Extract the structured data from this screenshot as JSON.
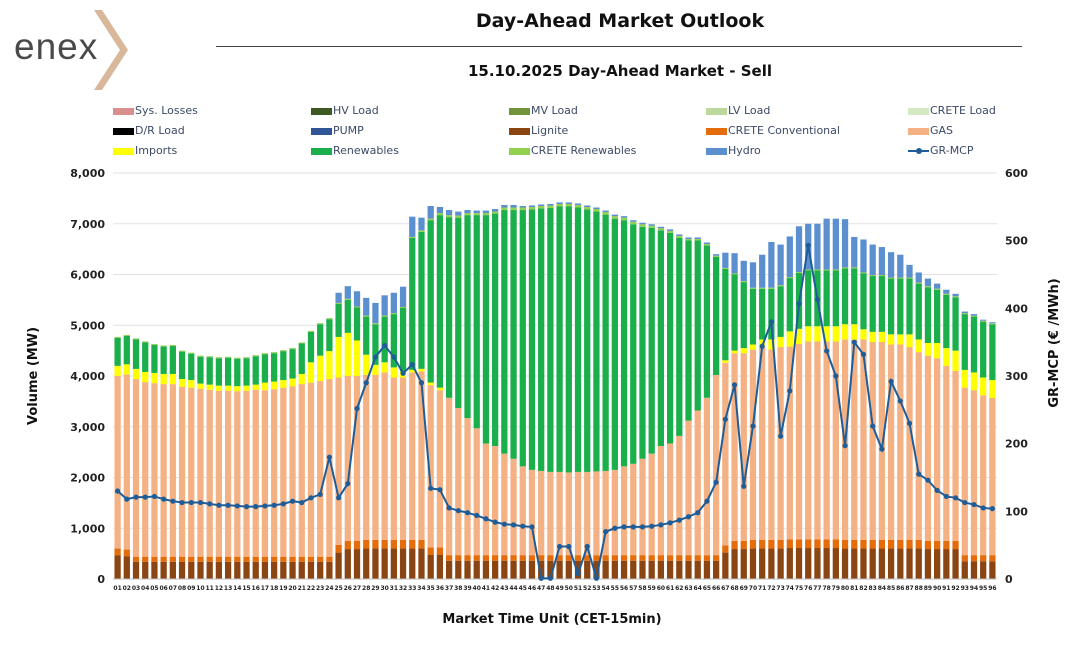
{
  "header": {
    "logo_text": "enex",
    "title": "Day-Ahead Market Outlook",
    "subtitle": "15.10.2025  Day-Ahead Market - Sell"
  },
  "chart_data": {
    "type": "bar",
    "stacked": true,
    "title": "15.10.2025  Day-Ahead Market - Sell",
    "xlabel": "Market Time Unit (CET-15min)",
    "ylabel": "Volume (MW)",
    "y2label": "GR-MCP (€ /MWh)",
    "ylim": [
      0,
      8000
    ],
    "y2lim": [
      0,
      600
    ],
    "yticks": [
      "0",
      "1,000",
      "2,000",
      "3,000",
      "4,000",
      "5,000",
      "6,000",
      "7,000",
      "8,000"
    ],
    "y2ticks": [
      "0",
      "100",
      "200",
      "300",
      "400",
      "500",
      "600"
    ],
    "categories": [
      "01",
      "02",
      "03",
      "04",
      "05",
      "06",
      "07",
      "08",
      "09",
      "10",
      "11",
      "12",
      "13",
      "14",
      "15",
      "16",
      "17",
      "18",
      "19",
      "20",
      "21",
      "22",
      "23",
      "24",
      "25",
      "26",
      "27",
      "28",
      "29",
      "30",
      "31",
      "32",
      "33",
      "34",
      "35",
      "36",
      "37",
      "38",
      "39",
      "40",
      "41",
      "42",
      "43",
      "44",
      "45",
      "46",
      "47",
      "48",
      "49",
      "50",
      "51",
      "52",
      "53",
      "54",
      "55",
      "56",
      "57",
      "58",
      "59",
      "60",
      "61",
      "62",
      "63",
      "64",
      "65",
      "66",
      "67",
      "68",
      "69",
      "70",
      "71",
      "72",
      "73",
      "74",
      "75",
      "76",
      "77",
      "78",
      "79",
      "80",
      "81",
      "82",
      "83",
      "84",
      "85",
      "86",
      "87",
      "88",
      "89",
      "90",
      "91",
      "92",
      "93",
      "94",
      "95",
      "96"
    ],
    "legend": [
      {
        "name": "Sys. Losses",
        "color": "#d98f8f"
      },
      {
        "name": "HV Load",
        "color": "#3e5a22"
      },
      {
        "name": "MV Load",
        "color": "#71943a"
      },
      {
        "name": "LV Load",
        "color": "#bcd89a"
      },
      {
        "name": "CRETE Load",
        "color": "#d5e8c4"
      },
      {
        "name": "D/R Load",
        "color": "#000000"
      },
      {
        "name": "PUMP",
        "color": "#2f5597"
      },
      {
        "name": "Lignite",
        "color": "#8b4513"
      },
      {
        "name": "CRETE Conventional",
        "color": "#e46c0a"
      },
      {
        "name": "GAS",
        "color": "#f4b183"
      },
      {
        "name": "Imports",
        "color": "#ffff00"
      },
      {
        "name": "Renewables",
        "color": "#1aaf4b"
      },
      {
        "name": "CRETE Renewables",
        "color": "#92d050"
      },
      {
        "name": "Hydro",
        "color": "#5b8fd0"
      },
      {
        "name": "GR-MCP",
        "color": "#1f5d99",
        "line": true
      }
    ],
    "series": [
      {
        "name": "Lignite",
        "color": "#8b4513",
        "values": [
          470,
          450,
          340,
          340,
          340,
          340,
          340,
          340,
          340,
          340,
          340,
          340,
          340,
          340,
          340,
          340,
          340,
          340,
          340,
          340,
          340,
          340,
          340,
          340,
          520,
          590,
          590,
          600,
          600,
          600,
          600,
          600,
          600,
          600,
          480,
          480,
          360,
          360,
          360,
          360,
          360,
          360,
          360,
          360,
          360,
          360,
          360,
          360,
          360,
          360,
          360,
          360,
          360,
          360,
          360,
          360,
          360,
          360,
          360,
          360,
          360,
          360,
          360,
          360,
          360,
          360,
          520,
          590,
          590,
          600,
          600,
          600,
          600,
          610,
          610,
          610,
          610,
          610,
          610,
          600,
          600,
          600,
          600,
          600,
          600,
          600,
          600,
          600,
          590,
          590,
          590,
          590,
          350,
          350,
          350,
          350
        ]
      },
      {
        "name": "CRETE Conventional",
        "color": "#e46c0a",
        "values": [
          130,
          130,
          100,
          100,
          100,
          100,
          100,
          100,
          100,
          100,
          100,
          100,
          100,
          100,
          100,
          100,
          100,
          100,
          100,
          100,
          100,
          100,
          100,
          100,
          150,
          160,
          160,
          170,
          170,
          170,
          170,
          170,
          170,
          170,
          140,
          140,
          110,
          110,
          110,
          110,
          110,
          110,
          110,
          110,
          110,
          110,
          110,
          110,
          110,
          110,
          110,
          110,
          110,
          110,
          110,
          110,
          110,
          110,
          110,
          110,
          110,
          110,
          110,
          110,
          110,
          110,
          140,
          160,
          160,
          170,
          170,
          170,
          170,
          170,
          170,
          170,
          170,
          170,
          170,
          170,
          170,
          170,
          170,
          170,
          170,
          170,
          170,
          170,
          160,
          160,
          160,
          160,
          120,
          120,
          120,
          120
        ]
      },
      {
        "name": "GAS",
        "color": "#f4b183",
        "values": [
          3400,
          3450,
          3500,
          3440,
          3420,
          3400,
          3400,
          3350,
          3330,
          3310,
          3290,
          3270,
          3270,
          3260,
          3270,
          3290,
          3280,
          3300,
          3330,
          3360,
          3400,
          3430,
          3460,
          3500,
          3300,
          3250,
          3250,
          3250,
          3250,
          3300,
          3200,
          3200,
          3300,
          3320,
          3200,
          3100,
          3100,
          2900,
          2700,
          2500,
          2200,
          2150,
          2000,
          1900,
          1750,
          1680,
          1660,
          1640,
          1640,
          1630,
          1640,
          1640,
          1650,
          1660,
          1680,
          1750,
          1800,
          1900,
          2000,
          2150,
          2200,
          2350,
          2650,
          2850,
          3100,
          3550,
          3600,
          3700,
          3700,
          3750,
          3800,
          3750,
          3800,
          3800,
          3850,
          3900,
          3900,
          3900,
          3900,
          3950,
          3950,
          3950,
          3900,
          3900,
          3850,
          3850,
          3800,
          3700,
          3650,
          3600,
          3450,
          3350,
          3300,
          3250,
          3150,
          3100
        ]
      },
      {
        "name": "Imports",
        "color": "#ffff00",
        "values": [
          200,
          200,
          200,
          200,
          200,
          200,
          200,
          150,
          150,
          100,
          100,
          100,
          100,
          100,
          100,
          100,
          150,
          150,
          150,
          150,
          200,
          400,
          500,
          550,
          800,
          850,
          700,
          400,
          200,
          200,
          200,
          120,
          50,
          50,
          50,
          50,
          0,
          0,
          0,
          0,
          0,
          0,
          0,
          0,
          0,
          0,
          0,
          0,
          0,
          0,
          0,
          0,
          0,
          0,
          0,
          0,
          0,
          0,
          0,
          0,
          0,
          0,
          0,
          0,
          0,
          0,
          50,
          50,
          100,
          100,
          150,
          200,
          200,
          300,
          300,
          300,
          300,
          300,
          300,
          300,
          300,
          200,
          200,
          200,
          200,
          200,
          250,
          250,
          250,
          300,
          350,
          400,
          350,
          350,
          350,
          350
        ]
      },
      {
        "name": "Renewables",
        "color": "#1aaf4b",
        "values": [
          550,
          560,
          580,
          580,
          550,
          540,
          550,
          540,
          520,
          530,
          540,
          540,
          550,
          540,
          540,
          560,
          560,
          560,
          570,
          580,
          600,
          600,
          620,
          630,
          650,
          650,
          650,
          750,
          800,
          900,
          1050,
          1250,
          2600,
          2700,
          3200,
          3400,
          3560,
          3750,
          4000,
          4200,
          4500,
          4580,
          4800,
          4900,
          5050,
          5130,
          5170,
          5200,
          5230,
          5240,
          5210,
          5170,
          5120,
          5050,
          4950,
          4850,
          4720,
          4570,
          4450,
          4250,
          4150,
          3900,
          3550,
          3350,
          3000,
          2330,
          1800,
          1500,
          1300,
          1100,
          1000,
          1000,
          1000,
          1050,
          1100,
          1100,
          1100,
          1100,
          1100,
          1100,
          1100,
          1100,
          1100,
          1100,
          1100,
          1100,
          1100,
          1100,
          1100,
          1050,
          1050,
          1050,
          1100,
          1100,
          1100,
          1100
        ]
      },
      {
        "name": "CRETE Renewables",
        "color": "#92d050",
        "values": [
          20,
          20,
          20,
          20,
          20,
          20,
          20,
          20,
          20,
          20,
          20,
          20,
          20,
          20,
          20,
          20,
          20,
          20,
          20,
          20,
          20,
          20,
          20,
          20,
          20,
          20,
          20,
          20,
          20,
          20,
          20,
          20,
          20,
          30,
          30,
          40,
          40,
          40,
          40,
          40,
          40,
          40,
          50,
          50,
          50,
          50,
          50,
          50,
          50,
          50,
          50,
          50,
          50,
          50,
          50,
          50,
          50,
          50,
          40,
          40,
          40,
          40,
          30,
          30,
          30,
          20,
          20,
          20,
          20,
          20,
          20,
          20,
          20,
          20,
          20,
          20,
          20,
          20,
          20,
          20,
          20,
          20,
          20,
          20,
          20,
          20,
          20,
          20,
          20,
          20,
          20,
          20,
          20,
          20,
          20,
          20
        ]
      },
      {
        "name": "Hydro",
        "color": "#5b8fd0",
        "values": [
          0,
          0,
          0,
          0,
          0,
          0,
          0,
          0,
          0,
          0,
          0,
          0,
          0,
          0,
          0,
          0,
          0,
          0,
          0,
          0,
          0,
          0,
          0,
          0,
          200,
          250,
          300,
          350,
          400,
          400,
          400,
          400,
          400,
          250,
          250,
          120,
          100,
          80,
          60,
          50,
          50,
          50,
          50,
          50,
          30,
          30,
          30,
          30,
          30,
          30,
          30,
          30,
          30,
          30,
          30,
          30,
          30,
          30,
          30,
          30,
          30,
          30,
          30,
          30,
          30,
          30,
          300,
          400,
          400,
          500,
          650,
          900,
          800,
          800,
          900,
          900,
          900,
          1000,
          1000,
          950,
          600,
          650,
          600,
          550,
          500,
          450,
          250,
          200,
          150,
          100,
          80,
          50,
          30,
          30,
          20,
          20
        ]
      }
    ],
    "line_series": {
      "name": "GR-MCP",
      "color": "#1f5d99",
      "axis": "right",
      "values": [
        130,
        118,
        121,
        121,
        122,
        118,
        115,
        113,
        113,
        113,
        111,
        109,
        109,
        108,
        107,
        107,
        108,
        109,
        111,
        115,
        113,
        120,
        125,
        180,
        120,
        141,
        252,
        290,
        328,
        345,
        328,
        304,
        317,
        290,
        134,
        132,
        105,
        101,
        98,
        94,
        89,
        84,
        81,
        80,
        78,
        77,
        1,
        1,
        48,
        48,
        8,
        48,
        1,
        70,
        75,
        77,
        77,
        77,
        78,
        80,
        83,
        87,
        92,
        98,
        115,
        143,
        236,
        287,
        137,
        226,
        344,
        380,
        211,
        278,
        407,
        493,
        413,
        337,
        300,
        197,
        350,
        332,
        226,
        192,
        292,
        263,
        230,
        155,
        146,
        131,
        122,
        120,
        113,
        110,
        105,
        104
      ]
    }
  }
}
